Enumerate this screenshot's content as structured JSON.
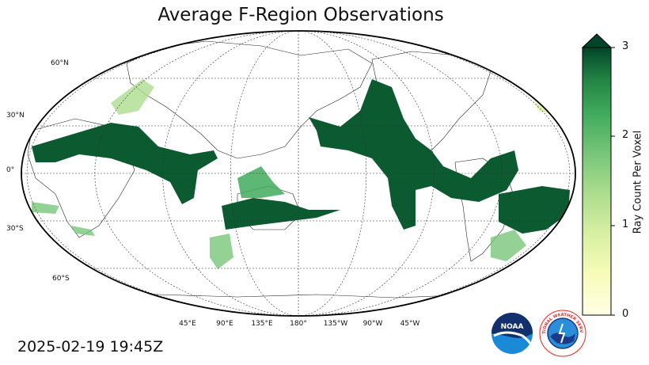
{
  "title": "Average F-Region Observations",
  "timestamp": "2025-02-19 19:45Z",
  "colorbar": {
    "label": "Ray Count Per Voxel",
    "ticks": [
      "0",
      "1",
      "2",
      "3"
    ],
    "min": 0,
    "max": 3,
    "extend": "max",
    "colormap": "Greens",
    "color_low": "#ffffe5",
    "color_high": "#004529"
  },
  "map": {
    "projection": "robinson",
    "central_longitude": 180,
    "gridlines": "dashed",
    "lon_labels": [
      "45°E",
      "90°E",
      "135°E",
      "180°",
      "135°W",
      "90°W",
      "45°W"
    ],
    "lat_labels": [
      "60°N",
      "30°N",
      "0°",
      "30°S",
      "60°S"
    ],
    "data_color": "#0b5a30"
  },
  "logos": {
    "noaa": "NOAA",
    "nws": "NATIONAL WEATHER SERVICE"
  }
}
